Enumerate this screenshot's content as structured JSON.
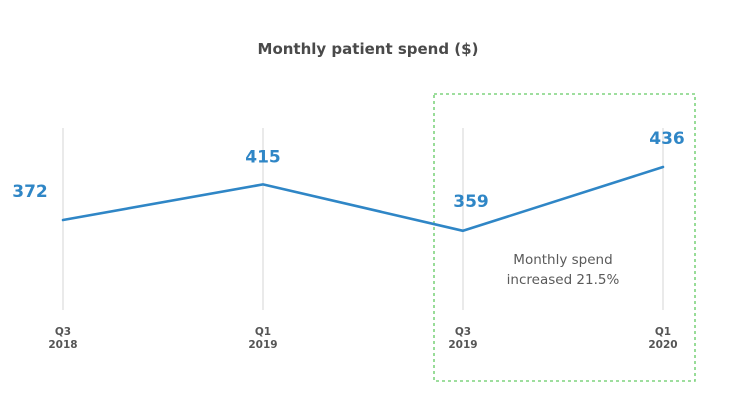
{
  "chart_data": {
    "type": "line",
    "title": "Monthly patient spend ($)",
    "xlabel": "",
    "ylabel": "",
    "categories": [
      [
        "Q3",
        "2018"
      ],
      [
        "Q1",
        "2019"
      ],
      [
        "Q3",
        "2019"
      ],
      [
        "Q1",
        "2020"
      ]
    ],
    "series": [
      {
        "values": [
          372,
          415,
          359,
          436
        ],
        "color": "#2f86c6"
      }
    ],
    "data_labels": [
      "372",
      "415",
      "359",
      "436"
    ],
    "grid": "vertical",
    "grid_color": "#d4d4d4",
    "annotation": {
      "lines": [
        "Monthly spend",
        "increased 21.5%"
      ],
      "highlight_from_category": 2,
      "highlight_to_category": 3,
      "border_color": "#7fd37f"
    }
  }
}
